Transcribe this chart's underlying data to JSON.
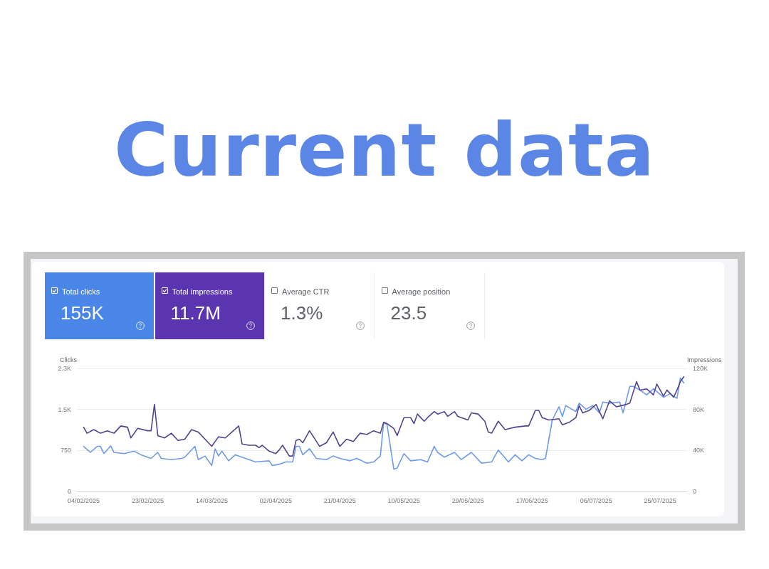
{
  "chart_data": [
    {
      "type": "other",
      "title": "Current data",
      "annotations": [
        "Total clicks",
        "155K",
        "Total impressions",
        "11.7M",
        "Average CTR",
        "1.3%",
        "Average position",
        "23.5"
      ],
      "colors": [
        "#4a86e8",
        "#5b34b0",
        "#ffffff",
        "#ffffff"
      ]
    },
    {
      "type": "line",
      "ylabel": "Clicks",
      "y2label": "Impressions",
      "xlim": [
        "2025-02-02",
        "2025-08-02"
      ],
      "xticks": [
        {
          "value": "2025-02-04",
          "label": "04/02/2025"
        },
        {
          "value": "2025-02-23",
          "label": "23/02/2025"
        },
        {
          "value": "2025-03-14",
          "label": "14/03/2025"
        },
        {
          "value": "2025-04-02",
          "label": "02/04/2025"
        },
        {
          "value": "2025-04-21",
          "label": "21/04/2025"
        },
        {
          "value": "2025-05-10",
          "label": "10/05/2025"
        },
        {
          "value": "2025-05-29",
          "label": "29/05/2025"
        },
        {
          "value": "2025-06-17",
          "label": "17/06/2025"
        },
        {
          "value": "2025-07-06",
          "label": "06/07/2025"
        },
        {
          "value": "2025-07-25",
          "label": "25/07/2025"
        }
      ],
      "ylim": [
        0,
        2250
      ],
      "yticks": [
        0,
        750,
        {
          "value": 1500,
          "label": "1.5K"
        },
        {
          "value": 2250,
          "label": "2.3K"
        }
      ],
      "y2lim": [
        0,
        120000
      ],
      "y2ticks": [
        0,
        {
          "value": 40000,
          "label": "40K"
        },
        {
          "value": 80000,
          "label": "80K"
        },
        {
          "value": 120000,
          "label": "120K"
        }
      ],
      "grid": "y",
      "marker": "none",
      "line_style": "solid",
      "series": [
        {
          "color": "#6e9be8",
          "x": [
            "2025-02-04",
            "2025-02-06",
            "2025-02-08",
            "2025-02-09",
            "2025-02-10",
            "2025-02-12",
            "2025-02-13",
            "2025-02-16",
            "2025-02-19",
            "2025-02-21",
            "2025-02-24",
            "2025-02-26",
            "2025-02-27",
            "2025-03-02",
            "2025-03-05",
            "2025-03-06",
            "2025-03-09",
            "2025-03-10",
            "2025-03-12",
            "2025-03-14",
            "2025-03-15",
            "2025-03-16",
            "2025-03-17",
            "2025-03-19",
            "2025-03-21",
            "2025-03-24",
            "2025-03-27",
            "2025-03-31",
            "2025-04-01",
            "2025-04-03",
            "2025-04-05",
            "2025-04-07",
            "2025-04-08",
            "2025-04-09",
            "2025-04-10",
            "2025-04-12",
            "2025-04-14",
            "2025-04-17",
            "2025-04-19",
            "2025-04-21",
            "2025-04-24",
            "2025-04-26",
            "2025-04-29",
            "2025-05-01",
            "2025-05-03",
            "2025-05-04",
            "2025-05-05",
            "2025-05-07",
            "2025-05-08",
            "2025-05-10",
            "2025-05-12",
            "2025-05-15",
            "2025-05-17",
            "2025-05-19",
            "2025-05-20",
            "2025-05-22",
            "2025-05-25",
            "2025-05-27",
            "2025-05-30",
            "2025-06-02",
            "2025-06-05",
            "2025-06-07",
            "2025-06-10",
            "2025-06-12",
            "2025-06-14",
            "2025-06-16",
            "2025-06-18",
            "2025-06-20",
            "2025-06-21",
            "2025-06-23",
            "2025-06-25",
            "2025-06-26",
            "2025-06-27",
            "2025-06-30",
            "2025-07-01",
            "2025-07-03",
            "2025-07-05",
            "2025-07-07",
            "2025-07-08",
            "2025-07-10",
            "2025-07-13",
            "2025-07-14",
            "2025-07-16",
            "2025-07-17",
            "2025-07-19",
            "2025-07-21",
            "2025-07-23",
            "2025-07-26",
            "2025-07-28",
            "2025-07-30",
            "2025-07-31",
            "2025-08-01"
          ],
          "values": [
            825,
            715,
            825,
            825,
            693,
            833,
            715,
            693,
            737,
            671,
            605,
            715,
            605,
            583,
            605,
            627,
            825,
            583,
            649,
            474,
            781,
            649,
            737,
            561,
            671,
            605,
            539,
            561,
            474,
            496,
            539,
            539,
            825,
            825,
            671,
            781,
            605,
            583,
            649,
            605,
            561,
            605,
            518,
            539,
            649,
            1263,
            1219,
            408,
            430,
            693,
            561,
            583,
            539,
            825,
            715,
            627,
            715,
            583,
            715,
            518,
            539,
            759,
            539,
            671,
            561,
            671,
            605,
            583,
            605,
            1307,
            1548,
            1373,
            1570,
            1461,
            1614,
            1504,
            1570,
            1439,
            1636,
            1614,
            1636,
            1439,
            1921,
            1921,
            1855,
            1768,
            1877,
            1724,
            1790,
            1702,
            2075,
            1987
          ]
        },
        {
          "color": "#55428f",
          "axis": "y2",
          "x": [
            "2025-02-04",
            "2025-02-05",
            "2025-02-07",
            "2025-02-09",
            "2025-02-11",
            "2025-02-13",
            "2025-02-15",
            "2025-02-17",
            "2025-02-18",
            "2025-02-20",
            "2025-02-23",
            "2025-02-24",
            "2025-02-25",
            "2025-02-26",
            "2025-02-28",
            "2025-03-02",
            "2025-03-04",
            "2025-03-06",
            "2025-03-08",
            "2025-03-10",
            "2025-03-12",
            "2025-03-14",
            "2025-03-16",
            "2025-03-18",
            "2025-03-20",
            "2025-03-22",
            "2025-03-23",
            "2025-03-25",
            "2025-03-27",
            "2025-03-28",
            "2025-03-29",
            "2025-03-31",
            "2025-04-02",
            "2025-04-03",
            "2025-04-04",
            "2025-04-06",
            "2025-04-07",
            "2025-04-08",
            "2025-04-09",
            "2025-04-10",
            "2025-04-12",
            "2025-04-15",
            "2025-04-17",
            "2025-04-19",
            "2025-04-21",
            "2025-04-23",
            "2025-04-25",
            "2025-04-27",
            "2025-04-29",
            "2025-05-01",
            "2025-05-03",
            "2025-05-04",
            "2025-05-05",
            "2025-05-07",
            "2025-05-08",
            "2025-05-10",
            "2025-05-12",
            "2025-05-13",
            "2025-05-14",
            "2025-05-16",
            "2025-05-17",
            "2025-05-19",
            "2025-05-20",
            "2025-05-22",
            "2025-05-23",
            "2025-05-25",
            "2025-05-26",
            "2025-05-29",
            "2025-05-30",
            "2025-06-01",
            "2025-06-03",
            "2025-06-04",
            "2025-06-05",
            "2025-06-07",
            "2025-06-09",
            "2025-06-12",
            "2025-06-15",
            "2025-06-16",
            "2025-06-18",
            "2025-06-19",
            "2025-06-20",
            "2025-06-22",
            "2025-06-25",
            "2025-06-26",
            "2025-06-28",
            "2025-06-30",
            "2025-07-01",
            "2025-07-02",
            "2025-07-04",
            "2025-07-06",
            "2025-07-08",
            "2025-07-10",
            "2025-07-12",
            "2025-07-15",
            "2025-07-16",
            "2025-07-18",
            "2025-07-19",
            "2025-07-21",
            "2025-07-23",
            "2025-07-24",
            "2025-07-26",
            "2025-07-27",
            "2025-07-29",
            "2025-07-30",
            "2025-07-31",
            "2025-08-01"
          ],
          "values": [
            62700,
            56800,
            60300,
            56800,
            59200,
            56800,
            63900,
            62700,
            52200,
            61500,
            59200,
            59200,
            84900,
            54500,
            52200,
            56800,
            49800,
            51000,
            60300,
            58000,
            51000,
            44000,
            53300,
            52200,
            58000,
            63900,
            46300,
            45100,
            45100,
            42800,
            45100,
            39300,
            37000,
            40500,
            45100,
            34600,
            34600,
            49800,
            51000,
            47500,
            59200,
            44000,
            47500,
            58000,
            44000,
            51000,
            48700,
            56800,
            55700,
            59200,
            56800,
            67400,
            66200,
            61500,
            54500,
            72000,
            72000,
            66200,
            75500,
            68500,
            72000,
            77900,
            75500,
            77900,
            73200,
            77900,
            73200,
            69700,
            76700,
            75500,
            68500,
            58000,
            56800,
            68500,
            60300,
            62700,
            63900,
            63900,
            79100,
            79100,
            72000,
            69700,
            70900,
            65000,
            67400,
            72000,
            83700,
            76700,
            79100,
            84900,
            70900,
            88400,
            82600,
            84900,
            86100,
            107100,
            98900,
            100100,
            94300,
            104800,
            93100,
            98900,
            91900,
            98900,
            107100,
            111800
          ]
        }
      ]
    }
  ]
}
